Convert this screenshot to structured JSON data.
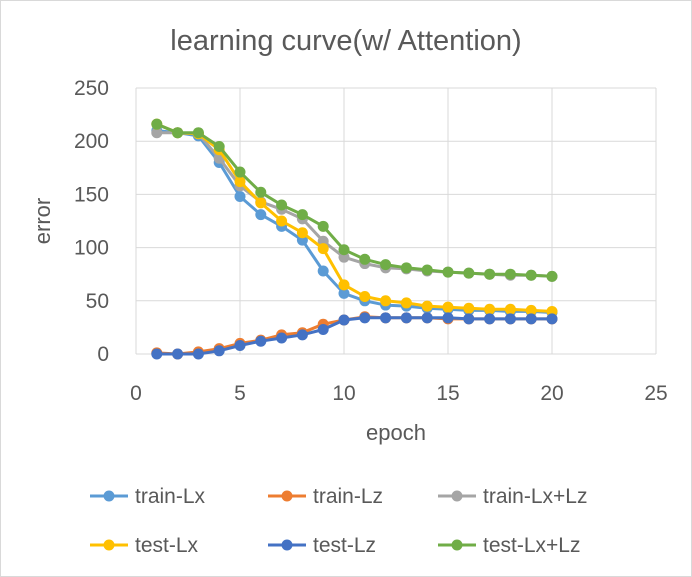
{
  "chart_data": {
    "type": "line",
    "title": "learning curve(w/ Attention)",
    "xlabel": "epoch",
    "ylabel": "error",
    "xlim": [
      0,
      25
    ],
    "ylim": [
      0,
      250
    ],
    "xticks": [
      0,
      5,
      10,
      15,
      20,
      25
    ],
    "yticks": [
      0,
      50,
      100,
      150,
      200,
      250
    ],
    "grid": "major gridlines on both axes",
    "legend_position": "bottom",
    "x": [
      1,
      2,
      3,
      4,
      5,
      6,
      7,
      8,
      9,
      10,
      11,
      12,
      13,
      14,
      15,
      16,
      17,
      18,
      19,
      20
    ],
    "series": [
      {
        "name": "train-Lx",
        "color": "#5b9bd5",
        "values": [
          210,
          208,
          205,
          180,
          148,
          131,
          120,
          107,
          78,
          57,
          50,
          46,
          45,
          43,
          42,
          41,
          41,
          40,
          40,
          39
        ]
      },
      {
        "name": "train-Lz",
        "color": "#ed7d31",
        "values": [
          1,
          0,
          2,
          5,
          10,
          13,
          18,
          20,
          28,
          32,
          35,
          34,
          34,
          34,
          33,
          33,
          33,
          33,
          33,
          33
        ]
      },
      {
        "name": "train-Lx+Lz",
        "color": "#a5a5a5",
        "values": [
          208,
          208,
          207,
          184,
          158,
          143,
          136,
          127,
          106,
          91,
          85,
          81,
          80,
          78,
          77,
          76,
          75,
          74,
          74,
          73
        ]
      },
      {
        "name": "test-Lx",
        "color": "#ffc000",
        "values": [
          216,
          208,
          207,
          192,
          162,
          142,
          125,
          114,
          99,
          65,
          54,
          50,
          48,
          45,
          44,
          43,
          42,
          42,
          41,
          40
        ]
      },
      {
        "name": "test-Lz",
        "color": "#4472c4",
        "values": [
          0,
          0,
          0,
          3,
          8,
          12,
          15,
          18,
          23,
          32,
          34,
          34,
          34,
          34,
          34,
          33,
          33,
          33,
          33,
          33
        ]
      },
      {
        "name": "test-Lx+Lz",
        "color": "#70ad47",
        "values": [
          216,
          208,
          208,
          195,
          171,
          152,
          140,
          131,
          120,
          98,
          89,
          84,
          81,
          79,
          77,
          76,
          75,
          75,
          74,
          73
        ]
      }
    ]
  },
  "colors": {
    "text": "#595959",
    "gridline": "#d9d9d9",
    "border": "#d9d9d9",
    "background": "#ffffff"
  }
}
